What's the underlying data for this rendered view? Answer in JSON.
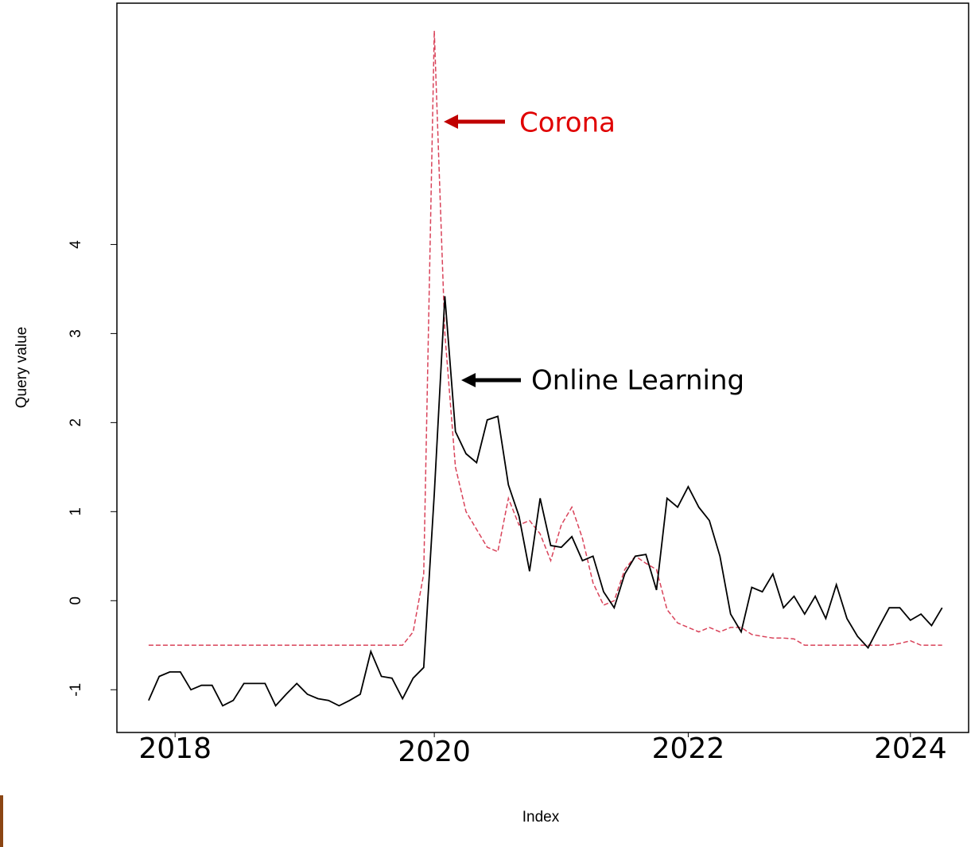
{
  "chart_data": {
    "type": "line",
    "xlabel": "Index",
    "ylabel": "Query value",
    "x": [
      1,
      2,
      3,
      4,
      5,
      6,
      7,
      8,
      9,
      10,
      11,
      12,
      13,
      14,
      15,
      16,
      17,
      18,
      19,
      20,
      21,
      22,
      23,
      24,
      25,
      26,
      27,
      28,
      29,
      30,
      31,
      32,
      33,
      34,
      35,
      36,
      37,
      38,
      39,
      40,
      41,
      42,
      43,
      44,
      45,
      46,
      47,
      48,
      49,
      50,
      51,
      52,
      53,
      54,
      55,
      56,
      57,
      58,
      59,
      60,
      61,
      62,
      63,
      64,
      65,
      66,
      67,
      68,
      69,
      70,
      71,
      72,
      73,
      74,
      75,
      76
    ],
    "series": [
      {
        "name": "Corona",
        "color": "#d9435a",
        "dashed": true,
        "values": [
          -0.5,
          -0.5,
          -0.5,
          -0.5,
          -0.5,
          -0.5,
          -0.5,
          -0.5,
          -0.5,
          -0.5,
          -0.5,
          -0.5,
          -0.5,
          -0.5,
          -0.5,
          -0.5,
          -0.5,
          -0.5,
          -0.5,
          -0.5,
          -0.5,
          -0.5,
          -0.5,
          -0.5,
          -0.5,
          -0.35,
          0.3,
          6.4,
          3.0,
          1.5,
          1.0,
          0.8,
          0.6,
          0.55,
          1.15,
          0.85,
          0.9,
          0.75,
          0.45,
          0.85,
          1.05,
          0.7,
          0.2,
          -0.05,
          0,
          0.35,
          0.5,
          0.42,
          0.35,
          -0.1,
          -0.25,
          -0.3,
          -0.35,
          -0.3,
          -0.35,
          -0.3,
          -0.3,
          -0.38,
          -0.4,
          -0.42,
          -0.42,
          -0.43,
          -0.5,
          -0.5,
          -0.5,
          -0.5,
          -0.5,
          -0.5,
          -0.5,
          -0.5,
          -0.5,
          -0.48,
          -0.45,
          -0.5,
          -0.5,
          -0.5
        ]
      },
      {
        "name": "Online Learning",
        "color": "#000000",
        "dashed": false,
        "values": [
          -1.12,
          -0.85,
          -0.8,
          -0.8,
          -1.0,
          -0.95,
          -0.95,
          -1.18,
          -1.12,
          -0.93,
          -0.93,
          -0.93,
          -1.18,
          -1.05,
          -0.93,
          -1.05,
          -1.1,
          -1.12,
          -1.18,
          -1.12,
          -1.05,
          -0.57,
          -0.85,
          -0.87,
          -1.1,
          -0.87,
          -0.75,
          1.2,
          3.42,
          1.9,
          1.65,
          1.55,
          2.03,
          2.07,
          1.3,
          0.95,
          0.33,
          1.15,
          0.62,
          0.6,
          0.72,
          0.45,
          0.5,
          0.1,
          -0.08,
          0.3,
          0.5,
          0.52,
          0.12,
          1.15,
          1.05,
          1.28,
          1.05,
          0.9,
          0.5,
          -0.15,
          -0.35,
          0.15,
          0.1,
          0.3,
          -0.08,
          0.05,
          -0.15,
          0.05,
          -0.2,
          0.18,
          -0.2,
          -0.4,
          -0.53,
          -0.3,
          -0.08,
          -0.08,
          -0.22,
          -0.15,
          -0.28,
          -0.08
        ]
      }
    ],
    "xlim": [
      -2,
      78.5
    ],
    "ylim": [
      -1.48,
      6.71
    ],
    "xticks": [
      {
        "value": 3.5,
        "label": "2018"
      },
      {
        "value": 28,
        "label": "2020"
      },
      {
        "value": 52,
        "label": "2022"
      },
      {
        "value": 73,
        "label": "2024"
      }
    ],
    "yticks": [
      -1,
      0,
      1,
      2,
      3,
      4
    ]
  }
}
